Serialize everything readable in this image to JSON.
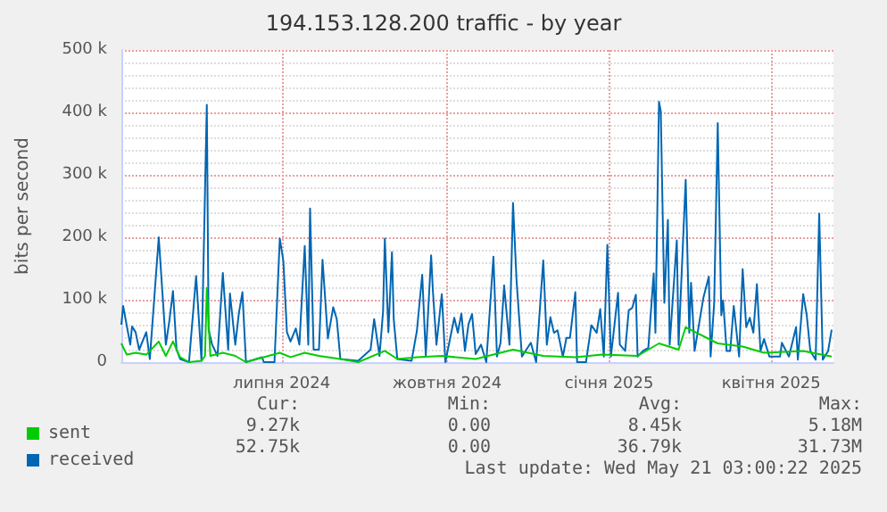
{
  "chart_data": {
    "type": "line",
    "title": "194.153.128.200 traffic - by year",
    "ylabel": "bits per second",
    "xlim": [
      "2024-04-16",
      "2025-05-21"
    ],
    "xticks": [
      {
        "value": "2024-07-15",
        "label": "липня 2024"
      },
      {
        "value": "2024-10-16",
        "label": "жовтня 2024"
      },
      {
        "value": "2025-01-15",
        "label": "січня 2025"
      },
      {
        "value": "2025-04-16",
        "label": "квітня 2025"
      }
    ],
    "ylim": [
      0,
      500000
    ],
    "yticks": [
      0,
      {
        "value": 100000,
        "label": "100 k"
      },
      {
        "value": 200000,
        "label": "200 k"
      },
      {
        "value": 300000,
        "label": "300 k"
      },
      {
        "value": 400000,
        "label": "400 k"
      },
      {
        "value": 500000,
        "label": "500 k"
      }
    ],
    "grid": true,
    "legend": "bottom left",
    "series": [
      {
        "name": "received",
        "color": "#0066b3",
        "x": [
          "2024-04-16",
          "2024-04-17",
          "2024-04-21",
          "2024-04-22",
          "2024-04-24",
          "2024-04-26",
          "2024-04-30",
          "2024-05-02",
          "2024-05-07",
          "2024-05-11",
          "2024-05-13",
          "2024-05-15",
          "2024-05-17",
          "2024-05-19",
          "2024-05-24",
          "2024-05-28",
          "2024-05-31",
          "2024-06-03",
          "2024-06-04",
          "2024-06-06",
          "2024-06-09",
          "2024-06-12",
          "2024-06-15",
          "2024-06-16",
          "2024-06-19",
          "2024-06-21",
          "2024-06-23",
          "2024-06-25",
          "2024-07-04",
          "2024-07-05",
          "2024-07-11",
          "2024-07-14",
          "2024-07-16",
          "2024-07-18",
          "2024-07-20",
          "2024-07-23",
          "2024-07-25",
          "2024-07-28",
          "2024-07-30",
          "2024-07-31",
          "2024-08-02",
          "2024-08-05",
          "2024-08-07",
          "2024-08-10",
          "2024-08-13",
          "2024-08-15",
          "2024-08-17",
          "2024-08-27",
          "2024-09-03",
          "2024-09-05",
          "2024-09-08",
          "2024-09-10",
          "2024-09-11",
          "2024-09-13",
          "2024-09-15",
          "2024-09-16",
          "2024-09-18",
          "2024-09-26",
          "2024-09-29",
          "2024-10-02",
          "2024-10-04",
          "2024-10-07",
          "2024-10-08",
          "2024-10-10",
          "2024-10-13",
          "2024-10-15",
          "2024-10-20",
          "2024-10-22",
          "2024-10-24",
          "2024-10-26",
          "2024-10-28",
          "2024-10-30",
          "2024-11-01",
          "2024-11-04",
          "2024-11-07",
          "2024-11-11",
          "2024-11-13",
          "2024-11-15",
          "2024-11-17",
          "2024-11-20",
          "2024-11-22",
          "2024-11-24",
          "2024-11-27",
          "2024-12-02",
          "2024-12-05",
          "2024-12-09",
          "2024-12-11",
          "2024-12-13",
          "2024-12-15",
          "2024-12-17",
          "2024-12-20",
          "2024-12-22",
          "2024-12-24",
          "2024-12-27",
          "2024-12-28",
          "2025-01-02",
          "2025-01-05",
          "2025-01-08",
          "2025-01-10",
          "2025-01-12",
          "2025-01-14",
          "2025-01-16",
          "2025-01-20",
          "2025-01-21",
          "2025-01-24",
          "2025-01-26",
          "2025-01-28",
          "2025-01-30",
          "2025-01-31",
          "2025-02-03",
          "2025-02-06",
          "2025-02-09",
          "2025-02-10",
          "2025-02-12",
          "2025-02-13",
          "2025-02-15",
          "2025-02-17",
          "2025-02-18",
          "2025-02-22",
          "2025-02-23",
          "2025-02-27",
          "2025-03-01",
          "2025-03-02",
          "2025-03-04",
          "2025-03-09",
          "2025-03-12",
          "2025-03-13",
          "2025-03-15",
          "2025-03-17",
          "2025-03-19",
          "2025-03-20",
          "2025-03-22",
          "2025-03-24",
          "2025-03-26",
          "2025-03-29",
          "2025-03-31",
          "2025-04-02",
          "2025-04-04",
          "2025-04-06",
          "2025-04-08",
          "2025-04-10",
          "2025-04-12",
          "2025-04-15",
          "2025-04-21",
          "2025-04-22",
          "2025-04-26",
          "2025-04-30",
          "2025-05-01",
          "2025-05-04",
          "2025-05-06",
          "2025-05-08",
          "2025-05-11",
          "2025-05-13",
          "2025-05-15",
          "2025-05-18",
          "2025-05-20"
        ],
        "values": [
          60000,
          90000,
          28000,
          57000,
          48000,
          20000,
          48000,
          5000,
          200000,
          28000,
          67000,
          114000,
          20000,
          5000,
          0,
          138000,
          2000,
          412000,
          52000,
          28000,
          10000,
          143000,
          20000,
          110000,
          28000,
          78000,
          112000,
          0,
          8000,
          0,
          0,
          198000,
          162000,
          48000,
          33000,
          54000,
          28000,
          186000,
          28000,
          246000,
          20000,
          20000,
          164000,
          38000,
          88000,
          69000,
          5000,
          2000,
          20000,
          69000,
          10000,
          81000,
          198000,
          48000,
          176000,
          69000,
          5000,
          2000,
          50000,
          140000,
          10000,
          171000,
          114000,
          28000,
          109000,
          0,
          71000,
          47000,
          78000,
          18000,
          61000,
          77000,
          13000,
          28000,
          0,
          169000,
          9000,
          31000,
          123000,
          28000,
          255000,
          130000,
          9000,
          31000,
          0,
          163000,
          28000,
          72000,
          47000,
          51000,
          9000,
          39000,
          39000,
          112000,
          0,
          0,
          59000,
          47000,
          85000,
          9000,
          188000,
          9000,
          111000,
          28000,
          18000,
          83000,
          87000,
          108000,
          9000,
          18000,
          23000,
          142000,
          47000,
          417000,
          402000,
          95000,
          228000,
          28000,
          195000,
          28000,
          292000,
          47000,
          127000,
          18000,
          104000,
          137000,
          9000,
          95000,
          383000,
          75000,
          99000,
          18000,
          18000,
          90000,
          9000,
          149000,
          56000,
          71000,
          47000,
          125000,
          18000,
          37000,
          9000,
          9000,
          31000,
          9000,
          56000,
          4000,
          109000,
          75000,
          18000,
          4000,
          238000,
          4000,
          18000,
          52000
        ]
      },
      {
        "name": "sent",
        "color": "#00cc00",
        "x": [
          "2024-04-16",
          "2024-04-19",
          "2024-04-24",
          "2024-04-30",
          "2024-05-07",
          "2024-05-11",
          "2024-05-15",
          "2024-05-19",
          "2024-05-24",
          "2024-05-31",
          "2024-06-02",
          "2024-06-03",
          "2024-06-05",
          "2024-06-12",
          "2024-06-19",
          "2024-06-25",
          "2024-07-14",
          "2024-07-20",
          "2024-07-28",
          "2024-08-05",
          "2024-08-17",
          "2024-08-27",
          "2024-09-11",
          "2024-09-18",
          "2024-09-29",
          "2024-10-13",
          "2024-11-01",
          "2024-11-22",
          "2024-12-09",
          "2024-12-27",
          "2025-01-11",
          "2025-01-31",
          "2025-02-12",
          "2025-02-23",
          "2025-02-27",
          "2025-03-17",
          "2025-03-31",
          "2025-04-12",
          "2025-05-04",
          "2025-05-20"
        ],
        "values": [
          30000,
          12000,
          15000,
          12000,
          33000,
          10000,
          33000,
          8000,
          0,
          2000,
          10000,
          119000,
          10000,
          15000,
          10000,
          0,
          15000,
          8000,
          15000,
          10000,
          5000,
          0,
          18000,
          5000,
          8000,
          10000,
          5000,
          20000,
          10000,
          8000,
          12000,
          10000,
          30000,
          20000,
          56000,
          30000,
          25000,
          15000,
          18000,
          9000
        ]
      }
    ],
    "annotations": [
      "Cur:",
      "Min:",
      "Avg:",
      "Max:",
      "9.27k",
      "0.00",
      "8.45k",
      "5.18M",
      "52.75k",
      "0.00",
      "36.79k",
      "31.73M",
      "Last update: Wed May 21 03:00:22 2025"
    ]
  }
}
